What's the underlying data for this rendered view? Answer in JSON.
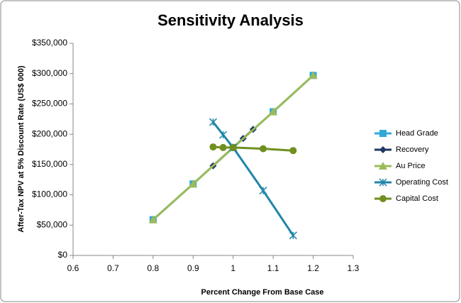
{
  "chart_data": {
    "type": "line",
    "title": "Sensitivity Analysis",
    "x_label": "Percent Change  From Base Case",
    "y_label": "After-Tax NPV at 5% Discount Rate (US$ 000)",
    "xlim": [
      0.6,
      1.3
    ],
    "xticks": [
      0.6,
      0.7,
      0.8,
      0.9,
      1,
      1.1,
      1.2,
      1.3
    ],
    "ylim": [
      0,
      350000
    ],
    "yticks": [
      {
        "value": 0,
        "label": "$0"
      },
      {
        "value": 50000,
        "label": "$50,000"
      },
      {
        "value": 100000,
        "label": "$100,000"
      },
      {
        "value": 150000,
        "label": "$150,000"
      },
      {
        "value": 200000,
        "label": "$200,000"
      },
      {
        "value": 250000,
        "label": "$250,000"
      },
      {
        "value": 300000,
        "label": "$300,000"
      },
      {
        "value": 350000,
        "label": "$350,000"
      }
    ],
    "legend": "right",
    "series": [
      {
        "name": "Head Grade",
        "color": "#31a9d6",
        "marker": "square",
        "x": [
          0.8,
          0.9,
          1,
          1.1,
          1.2
        ],
        "values": [
          59000,
          118000,
          178000,
          237000,
          297000
        ]
      },
      {
        "name": "Recovery",
        "color": "#1f3864",
        "marker": "diamond",
        "x": [
          0.95,
          1,
          1.025,
          1.05
        ],
        "values": [
          148000,
          178000,
          193000,
          208000
        ]
      },
      {
        "name": "Au Price",
        "color": "#9bbb59",
        "marker": "triangle",
        "x": [
          0.8,
          0.9,
          1,
          1.1,
          1.2
        ],
        "values": [
          59000,
          118000,
          178000,
          237000,
          297000
        ]
      },
      {
        "name": "Operating Cost",
        "color": "#1f86a8",
        "marker": "star",
        "x": [
          0.95,
          0.975,
          1,
          1.075,
          1.15
        ],
        "values": [
          220000,
          199000,
          178000,
          107000,
          33000
        ]
      },
      {
        "name": "Capital Cost",
        "color": "#6f8f1f",
        "marker": "circle",
        "x": [
          0.95,
          0.975,
          1,
          1.075,
          1.15
        ],
        "values": [
          179000,
          178000,
          178000,
          176000,
          173000
        ]
      }
    ]
  }
}
